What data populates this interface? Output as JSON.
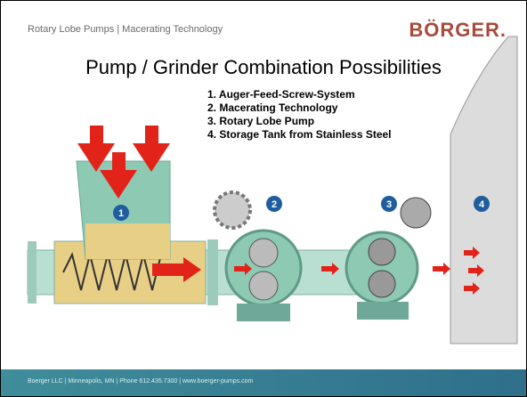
{
  "header": {
    "subtitle": "Rotary Lobe Pumps | Macerating Technology",
    "logo": "BÖRGER."
  },
  "title": "Pump / Grinder Combination Possibilities",
  "items": [
    "1. Auger-Feed-Screw-System",
    "2. Macerating Technology",
    "3. Rotary Lobe Pump",
    "4. Storage Tank from Stainless Steel"
  ],
  "diagram": {
    "markers": [
      "1",
      "2",
      "3",
      "4"
    ]
  },
  "footer": "Boerger LLC | Minneapolis, MN | Phone 612.435.7300 | www.boerger-pumps.com"
}
